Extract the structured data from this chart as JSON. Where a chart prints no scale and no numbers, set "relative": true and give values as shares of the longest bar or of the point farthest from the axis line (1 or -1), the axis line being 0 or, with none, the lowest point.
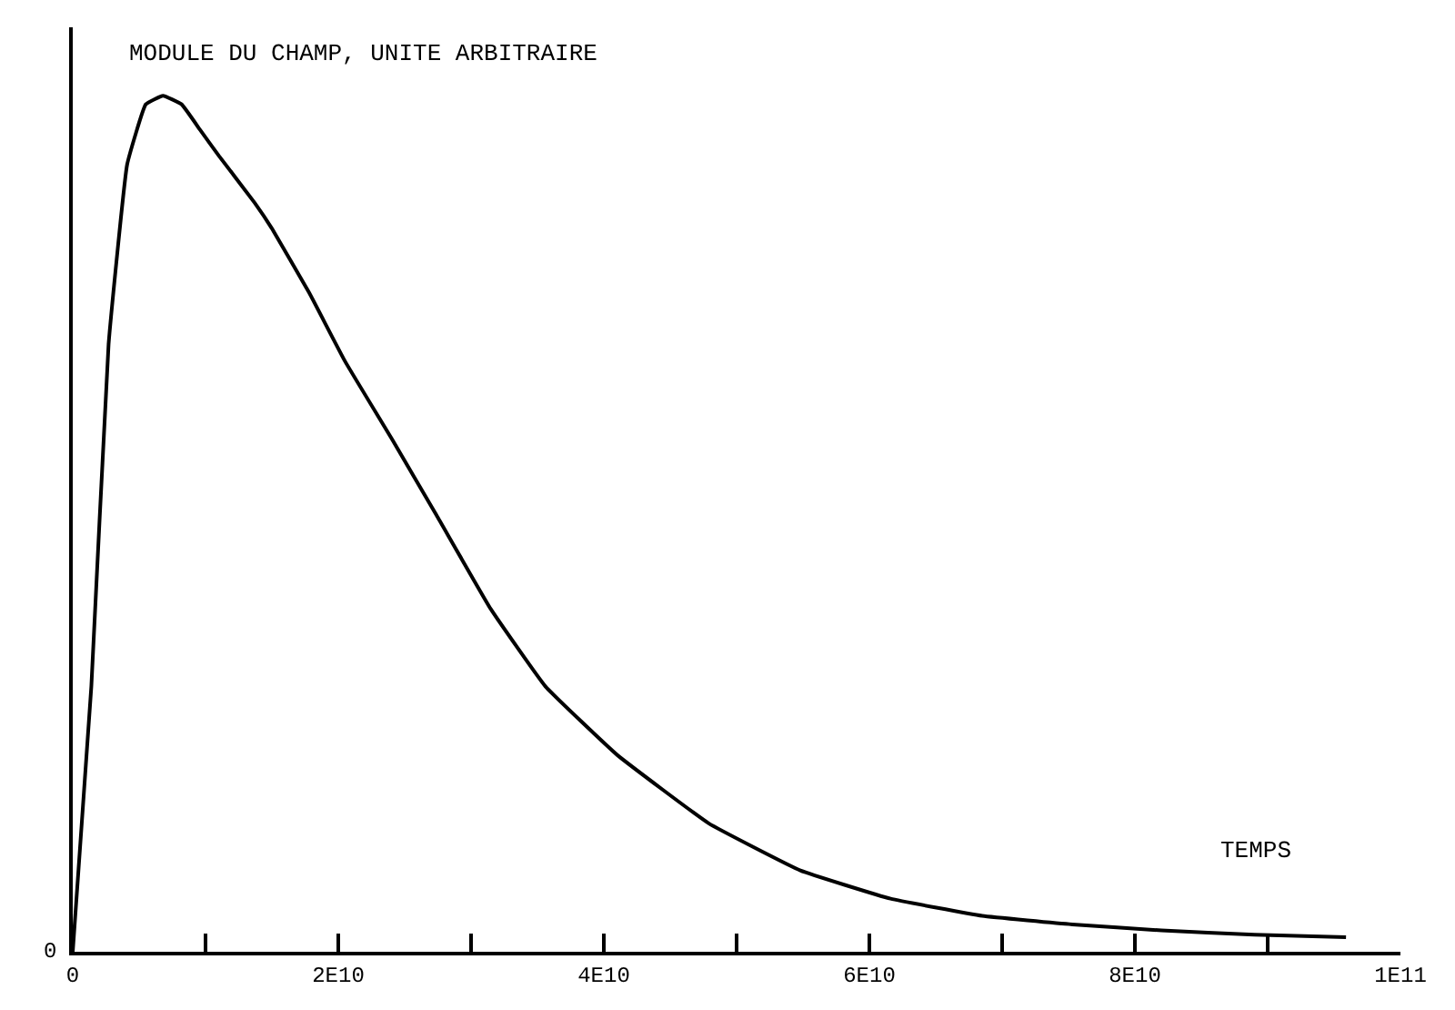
{
  "chart_data": {
    "type": "line",
    "relative": true,
    "ylabel": "MODULE DU CHAMP, UNITE ARBITRAIRE",
    "xlabel": "TEMPS",
    "x": [
      0,
      1400000000.0,
      2700000000.0,
      4100000000.0,
      5500000000.0,
      6800000000.0,
      8200000000.0,
      9600000000.0,
      11000000000.0,
      13700000000.0,
      15000000000.0,
      17800000000.0,
      20500000000.0,
      24000000000.0,
      27400000000.0,
      31500000000.0,
      35600000000.0,
      41000000000.0,
      47900000000.0,
      54800000000.0,
      61600000000.0,
      68500000000.0,
      75300000000.0,
      82000000000.0,
      89000000000.0,
      95900000000.0
    ],
    "series": [
      {
        "color": "#000000",
        "values": [
          0,
          0.31,
          0.71,
          0.92,
          0.99,
          1.0,
          0.99,
          0.96,
          0.93,
          0.875,
          0.845,
          0.77,
          0.69,
          0.6,
          0.51,
          0.4,
          0.31,
          0.23,
          0.15,
          0.095,
          0.062,
          0.042,
          0.032,
          0.025,
          0.02,
          0.017
        ]
      }
    ],
    "xlim": [
      0,
      100000000000.0
    ],
    "xticks": [
      {
        "value": 0,
        "label": "0"
      },
      {
        "value": 10000000000.0,
        "label": null
      },
      {
        "value": 20000000000.0,
        "label": "2E10"
      },
      {
        "value": 30000000000.0,
        "label": null
      },
      {
        "value": 40000000000.0,
        "label": "4E10"
      },
      {
        "value": 50000000000.0,
        "label": null
      },
      {
        "value": 60000000000.0,
        "label": "6E10"
      },
      {
        "value": 70000000000.0,
        "label": null
      },
      {
        "value": 80000000000.0,
        "label": "8E10"
      },
      {
        "value": 90000000000.0,
        "label": null
      },
      {
        "value": 100000000000.0,
        "label": "1E11"
      }
    ],
    "annotations": [
      "0"
    ],
    "legend": false,
    "marker": "none",
    "line_style": "solid"
  }
}
